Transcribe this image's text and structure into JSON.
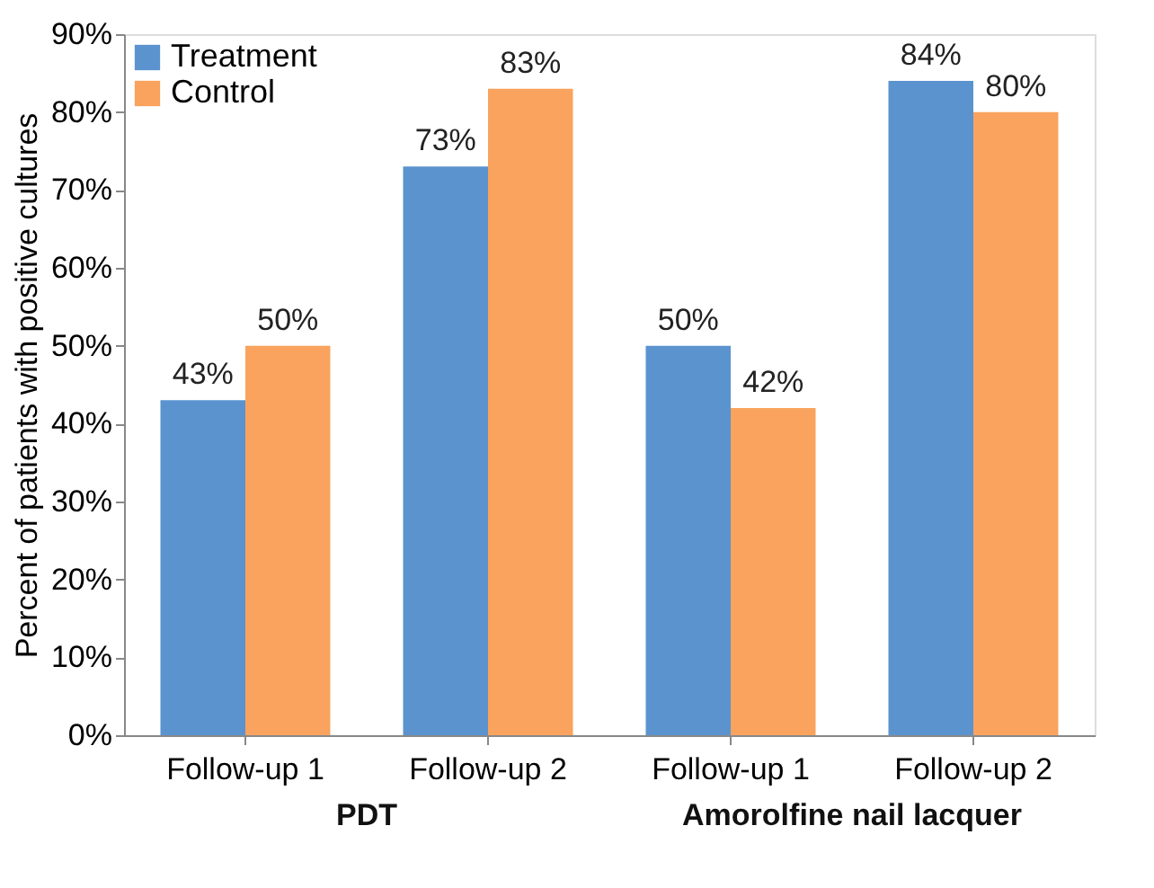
{
  "chart_data": {
    "type": "bar",
    "ylabel": "Percent of patients with positive cultures",
    "categories": [
      "Follow-up 1",
      "Follow-up 2",
      "Follow-up 1",
      "Follow-up 2"
    ],
    "series": [
      {
        "name": "Treatment",
        "color": "#5b93cf",
        "values": [
          43,
          73,
          50,
          84
        ],
        "value_labels": [
          "43%",
          "73%",
          "50%",
          "84%"
        ]
      },
      {
        "name": "Control",
        "color": "#f9a35e",
        "values": [
          50,
          83,
          42,
          80
        ],
        "value_labels": [
          "50%",
          "83%",
          "42%",
          "80%"
        ]
      }
    ],
    "ylim": [
      0,
      90
    ],
    "yticks": [
      {
        "value": 0,
        "label": "0%"
      },
      {
        "value": 10,
        "label": "10%"
      },
      {
        "value": 20,
        "label": "20%"
      },
      {
        "value": 30,
        "label": "30%"
      },
      {
        "value": 40,
        "label": "40%"
      },
      {
        "value": 50,
        "label": "50%"
      },
      {
        "value": 60,
        "label": "60%"
      },
      {
        "value": 70,
        "label": "70%"
      },
      {
        "value": 80,
        "label": "80%"
      },
      {
        "value": 90,
        "label": "90%"
      }
    ],
    "annotations": [
      "PDT",
      "Amorolfine nail lacquer"
    ],
    "legend": "top left",
    "grid": false
  }
}
